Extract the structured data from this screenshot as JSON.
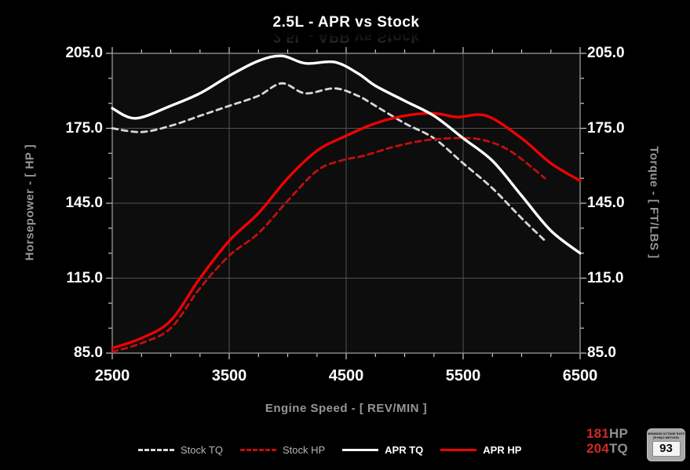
{
  "title": "2.5L - APR vs Stock",
  "colors": {
    "background": "#000000",
    "plot_background": "#0d0d0d",
    "grid": "#525252",
    "frame": "#8f8f8f",
    "tick": "#c9c9c9",
    "tick_label": "#ffffff",
    "axis_title": "#969696",
    "apr_red": "#ee0202",
    "stock_red": "#c40e0e",
    "apr_white": "#ffffff",
    "stock_white": "#d8d8d8",
    "result_number": "#cc2a27",
    "result_unit": "#8f8f8f",
    "badge_background": "#a9a9a9"
  },
  "chart_data": {
    "type": "line",
    "title": "2.5L - APR vs Stock",
    "xlabel": "Engine Speed - [ REV/MIN ]",
    "ylabel_left": "Horsepower - [ HP ]",
    "ylabel_right": "Torque - [ FT/LBS ]",
    "xlim": [
      2500,
      6500
    ],
    "ylim": [
      85,
      205
    ],
    "x_major_ticks": [
      2500,
      3500,
      4500,
      5500,
      6500
    ],
    "x_tick_labels": [
      "2500",
      "3500",
      "4500",
      "5500",
      "6500"
    ],
    "x_minor_step": 250,
    "y_major_ticks": [
      205,
      175,
      145,
      115,
      85
    ],
    "y_tick_labels": [
      "205.0",
      "175.0",
      "145.0",
      "115.0",
      "85.0"
    ],
    "y_minor_step": 10,
    "grid": true,
    "legend_position": "bottom",
    "series": [
      {
        "name": "Stock TQ",
        "unit": "FT/LBS",
        "style": "dashed",
        "color": "#d8d8d8",
        "x": [
          2500,
          2750,
          3000,
          3250,
          3500,
          3750,
          3950,
          4150,
          4400,
          4600,
          4750,
          5000,
          5250,
          5500,
          5750,
          6000,
          6200
        ],
        "values": [
          175,
          173.5,
          176,
          180,
          184,
          188,
          193,
          189,
          191,
          188,
          184,
          177,
          171,
          161,
          151,
          139,
          130
        ]
      },
      {
        "name": "Stock HP",
        "unit": "HP",
        "style": "dashed",
        "color": "#c40e0e",
        "x": [
          2500,
          2750,
          3000,
          3250,
          3500,
          3750,
          4000,
          4250,
          4450,
          4650,
          4900,
          5150,
          5400,
          5650,
          5900,
          6200
        ],
        "values": [
          85.5,
          89,
          95,
          111,
          124,
          133,
          146,
          158,
          162,
          164,
          167.5,
          170,
          171,
          170.5,
          166,
          155
        ]
      },
      {
        "name": "APR TQ",
        "unit": "FT/LBS",
        "style": "solid",
        "color": "#ffffff",
        "x": [
          2500,
          2700,
          3000,
          3250,
          3500,
          3750,
          3950,
          4150,
          4400,
          4600,
          4750,
          5000,
          5250,
          5500,
          5750,
          6000,
          6250,
          6500
        ],
        "values": [
          183,
          179,
          184,
          189,
          196,
          202,
          204,
          201,
          201.5,
          197,
          192,
          186,
          180,
          171,
          162,
          148,
          134,
          125
        ]
      },
      {
        "name": "APR HP",
        "unit": "HP",
        "style": "solid",
        "color": "#ee0202",
        "x": [
          2500,
          2750,
          3000,
          3250,
          3500,
          3750,
          4000,
          4250,
          4500,
          4750,
          5000,
          5250,
          5450,
          5700,
          6000,
          6250,
          6500
        ],
        "values": [
          87,
          91,
          98,
          115,
          130,
          141,
          155,
          166,
          172,
          177,
          180,
          181,
          179.5,
          180,
          171,
          161,
          154
        ]
      }
    ],
    "peak_results": {
      "apr_hp": 181,
      "apr_tq": 204
    }
  },
  "results": {
    "hp_value": "181",
    "hp_unit": "HP",
    "tq_value": "204",
    "tq_unit": "TQ"
  },
  "octane_badge": {
    "line1": "MINIMUM OCTANE RATING",
    "line2": "(R+M)/2 METHOD",
    "value": "93"
  }
}
